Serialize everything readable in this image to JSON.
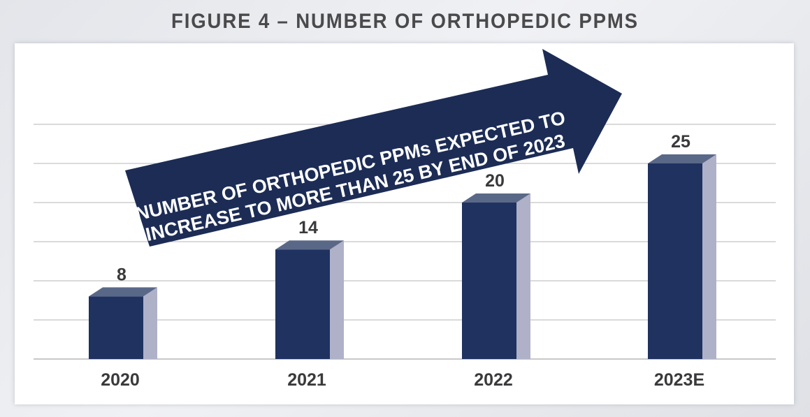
{
  "title": "FIGURE 4 – NUMBER OF ORTHOPEDIC PPMS",
  "colors": {
    "bar_front": "#1f3260",
    "bar_top": "#5a6888",
    "bar_side": "#aeb1c8",
    "arrow": "#1c2c55",
    "grid": "#b5b5b5",
    "text": "#3a3a3c"
  },
  "annotation": {
    "line1": "NUMBER OF ORTHOPEDIC PPMs EXPECTED TO",
    "line2": "INCREASE TO MORE THAN 25 BY END OF 2023"
  },
  "chart_data": {
    "type": "bar",
    "title": "FIGURE 4 – NUMBER OF ORTHOPEDIC PPMS",
    "xlabel": "",
    "ylabel": "",
    "categories": [
      "2020",
      "2021",
      "2022",
      "2023E"
    ],
    "values": [
      8,
      14,
      20,
      25
    ],
    "ylim": [
      0,
      30
    ],
    "grid": true,
    "legend": "none"
  }
}
